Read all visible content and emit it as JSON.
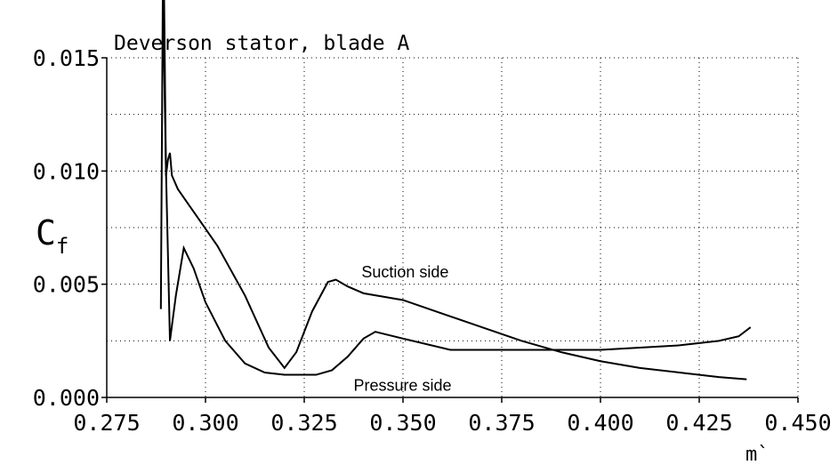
{
  "chart_data": {
    "type": "line",
    "title": "Deverson stator, blade A",
    "xlabel": "m`",
    "ylabel": {
      "main": "C",
      "sub": "f"
    },
    "xlim": [
      0.275,
      0.45
    ],
    "ylim": [
      0,
      0.015
    ],
    "xticks": [
      0.275,
      {
        "value": 0.3,
        "label": "0.300"
      },
      0.325,
      {
        "value": 0.35,
        "label": "0.350"
      },
      0.375,
      {
        "value": 0.4,
        "label": "0.400"
      },
      0.425,
      {
        "value": 0.45,
        "label": "0.450"
      }
    ],
    "yticks": [
      {
        "value": 0,
        "label": "0.000"
      },
      0.005,
      {
        "value": 0.01,
        "label": "0.010"
      },
      0.015
    ],
    "ygrid_minor": [
      0.0025,
      0.0075,
      0.0125
    ],
    "grid": true,
    "series": [
      {
        "name": "Suction side",
        "color": "#000000",
        "x": [
          0.2895,
          0.29,
          0.2905,
          0.291,
          0.2915,
          0.293,
          0.297,
          0.303,
          0.31,
          0.316,
          0.32,
          0.323,
          0.327,
          0.331,
          0.333,
          0.336,
          0.34,
          0.35,
          0.36,
          0.37,
          0.38,
          0.39,
          0.4,
          0.41,
          0.42,
          0.43,
          0.437
        ],
        "values": [
          0.018,
          0.0098,
          0.0105,
          0.0108,
          0.0098,
          0.0092,
          0.0082,
          0.0067,
          0.0045,
          0.0022,
          0.0013,
          0.002,
          0.0038,
          0.0051,
          0.0052,
          0.0049,
          0.0046,
          0.0043,
          0.0037,
          0.0031,
          0.0025,
          0.002,
          0.0016,
          0.0013,
          0.0011,
          0.0009,
          0.0008
        ]
      },
      {
        "name": "Pressure side",
        "color": "#000000",
        "x": [
          0.2887,
          0.2892,
          0.29,
          0.291,
          0.2925,
          0.2945,
          0.297,
          0.3,
          0.305,
          0.31,
          0.315,
          0.32,
          0.328,
          0.332,
          0.336,
          0.34,
          0.343,
          0.35,
          0.362,
          0.38,
          0.4,
          0.42,
          0.43,
          0.435,
          0.438
        ],
        "values": [
          0.0039,
          0.018,
          0.01,
          0.0025,
          0.0045,
          0.0066,
          0.0057,
          0.0042,
          0.0025,
          0.0015,
          0.0011,
          0.001,
          0.001,
          0.0012,
          0.0018,
          0.0026,
          0.0029,
          0.0026,
          0.0021,
          0.0021,
          0.0021,
          0.0023,
          0.0025,
          0.0027,
          0.0031
        ]
      }
    ]
  }
}
